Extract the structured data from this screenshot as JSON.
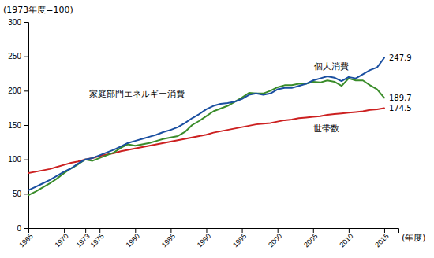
{
  "chart_data": {
    "type": "line",
    "title": "(1973年度=100)",
    "x_label": "(年度)",
    "x": [
      1965,
      1966,
      1967,
      1968,
      1969,
      1970,
      1971,
      1972,
      1973,
      1974,
      1975,
      1976,
      1977,
      1978,
      1979,
      1980,
      1981,
      1982,
      1983,
      1984,
      1985,
      1986,
      1987,
      1988,
      1989,
      1990,
      1991,
      1992,
      1993,
      1994,
      1995,
      1996,
      1997,
      1998,
      1999,
      2000,
      2001,
      2002,
      2003,
      2004,
      2005,
      2006,
      2007,
      2008,
      2009,
      2010,
      2011,
      2012,
      2013,
      2014,
      2015
    ],
    "series": [
      {
        "name": "世帯数",
        "color": "#cc2020",
        "values": [
          80,
          82,
          84,
          86,
          89,
          92,
          95,
          97,
          100,
          102,
          105,
          107,
          109,
          112,
          114,
          116,
          118,
          120,
          122,
          124,
          126,
          128,
          130,
          132,
          134,
          136,
          139,
          141,
          143,
          145,
          147,
          149,
          151,
          152,
          153,
          155,
          157,
          158,
          160,
          161,
          162,
          163,
          165,
          166,
          167,
          168,
          169,
          170,
          172,
          173,
          174.5
        ]
      },
      {
        "name": "家庭部門エネルギー消費",
        "color": "#3a8c2a",
        "values": [
          48,
          53,
          59,
          65,
          72,
          80,
          87,
          93,
          100,
          98,
          102,
          106,
          110,
          117,
          122,
          120,
          122,
          124,
          127,
          130,
          132,
          134,
          140,
          150,
          156,
          163,
          170,
          174,
          178,
          184,
          190,
          197,
          196,
          196,
          200,
          205,
          208,
          208,
          210,
          210,
          213,
          212,
          215,
          213,
          207,
          218,
          215,
          215,
          208,
          202,
          189.7
        ]
      },
      {
        "name": "個人消費",
        "color": "#1a4fa0",
        "values": [
          55,
          60,
          65,
          70,
          76,
          82,
          87,
          94,
          100,
          102,
          106,
          110,
          114,
          119,
          124,
          127,
          130,
          133,
          136,
          140,
          143,
          147,
          153,
          160,
          166,
          173,
          178,
          181,
          182,
          184,
          188,
          194,
          196,
          194,
          196,
          202,
          204,
          204,
          207,
          210,
          215,
          218,
          221,
          219,
          214,
          220,
          218,
          224,
          230,
          234,
          247.9
        ]
      }
    ],
    "xlim": [
      1965,
      2017
    ],
    "xticks": [
      1965,
      1970,
      1973,
      1975,
      1980,
      1985,
      1990,
      1995,
      2000,
      2005,
      2010,
      2015
    ],
    "ylim": [
      0,
      300
    ],
    "yticks": [
      0,
      50,
      100,
      150,
      200,
      250,
      300
    ],
    "grid": false
  }
}
